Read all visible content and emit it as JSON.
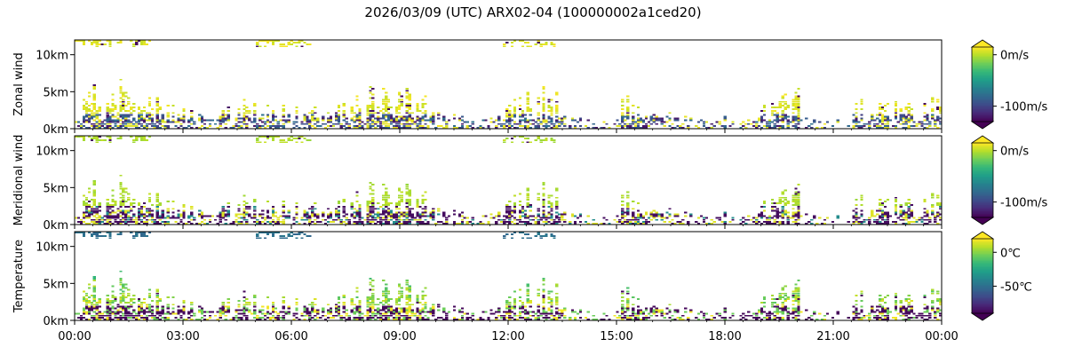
{
  "figure": {
    "title": "2026/03/09 (UTC) ARX02-04 (100000002a1ced20)"
  },
  "chart_data": [
    {
      "type": "heatmap",
      "ylabel": "Zonal wind",
      "xlim_hours": [
        0,
        24
      ],
      "ylim_km": [
        0,
        12
      ],
      "x_tick_labels": [
        "00:00",
        "03:00",
        "06:00",
        "09:00",
        "12:00",
        "15:00",
        "18:00",
        "21:00",
        "00:00"
      ],
      "y_tick_labels": [
        "0km",
        "5km",
        "10km"
      ],
      "y_tick_values_km": [
        0,
        5,
        10
      ],
      "colorbar": {
        "colormap": "viridis",
        "vmin": -130,
        "vmax": 15,
        "ticks": [
          0,
          -100
        ],
        "tick_labels": [
          "0m/s",
          "-100m/s"
        ],
        "extend": "both"
      }
    },
    {
      "type": "heatmap",
      "ylabel": "Meridional wind",
      "xlim_hours": [
        0,
        24
      ],
      "ylim_km": [
        0,
        12
      ],
      "x_tick_labels": [
        "00:00",
        "03:00",
        "06:00",
        "09:00",
        "12:00",
        "15:00",
        "18:00",
        "21:00",
        "00:00"
      ],
      "y_tick_labels": [
        "0km",
        "5km",
        "10km"
      ],
      "y_tick_values_km": [
        0,
        5,
        10
      ],
      "colorbar": {
        "colormap": "viridis",
        "vmin": -130,
        "vmax": 15,
        "ticks": [
          0,
          -100
        ],
        "tick_labels": [
          "0m/s",
          "-100m/s"
        ],
        "extend": "both"
      }
    },
    {
      "type": "heatmap",
      "ylabel": "Temperature",
      "xlim_hours": [
        0,
        24
      ],
      "ylim_km": [
        0,
        12
      ],
      "x_tick_labels": [
        "00:00",
        "03:00",
        "06:00",
        "09:00",
        "12:00",
        "15:00",
        "18:00",
        "21:00",
        "00:00"
      ],
      "y_tick_labels": [
        "0km",
        "5km",
        "10km"
      ],
      "y_tick_values_km": [
        0,
        5,
        10
      ],
      "colorbar": {
        "colormap": "viridis",
        "vmin": -90,
        "vmax": 20,
        "ticks": [
          0,
          -50
        ],
        "tick_labels": [
          "0℃",
          "-50℃"
        ],
        "extend": "both"
      }
    }
  ]
}
